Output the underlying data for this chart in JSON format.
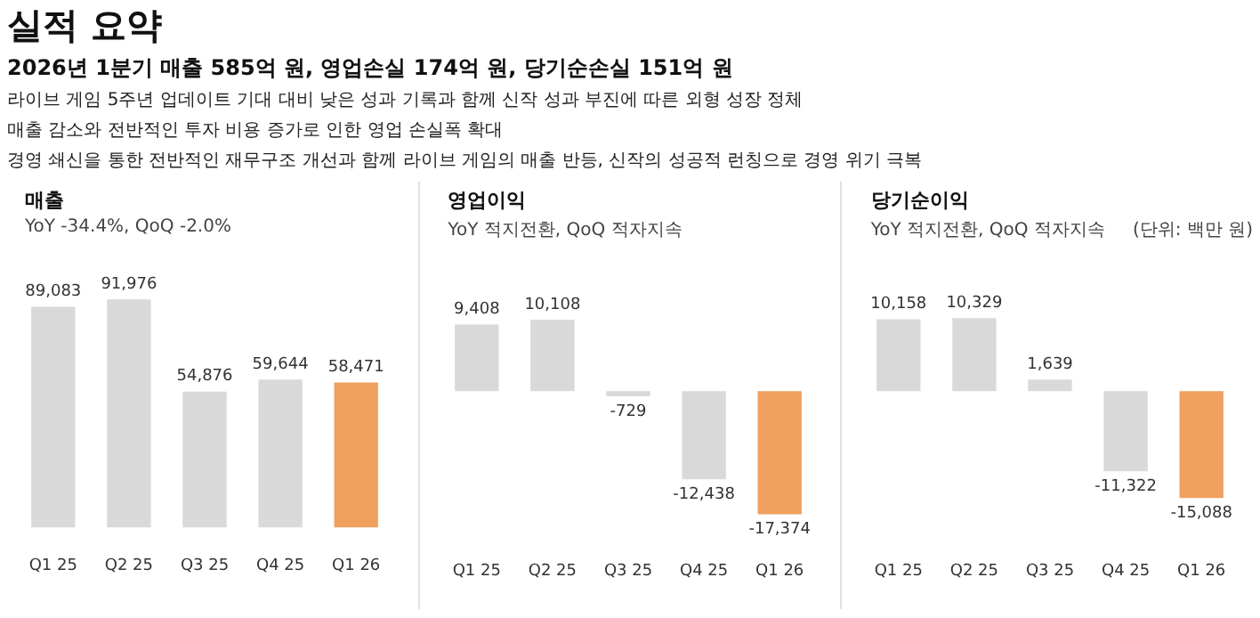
{
  "chart_data": [
    {
      "type": "other",
      "title": "실적 요약",
      "subtitle": "2026년 1분기 매출 585억 원, 영업손실 174억 원, 당기순손실 151억 원",
      "annotations": [
        "라이브 게임 5주년 업데이트 기대 대비 낮은 성과 기록과 함께 신작 성과 부진에 따른 외형 성장 정체",
        "매출 감소와 전반적인 투자 비용 증가로 인한 영업 손실폭 확대",
        "경영 쇄신을 통한 전반적인 재무구조 개선과 함께 라이브 게임의 매출 반등, 신작의 성공적 런칭으로 경영 위기 극복"
      ]
    },
    {
      "type": "bar",
      "title": "매출",
      "subtitle": "YoY -34.4%, QoQ -2.0%",
      "categories": [
        "Q1 25",
        "Q2 25",
        "Q3 25",
        "Q4 25",
        "Q1 26"
      ],
      "values": [
        89083,
        91976,
        54876,
        59644,
        58471
      ],
      "value_labels": [
        "89,083",
        "91,976",
        "54,876",
        "59,644",
        "58,471"
      ],
      "colors": [
        "#d9d9d9",
        "#d9d9d9",
        "#d9d9d9",
        "#d9d9d9",
        "#f0a05f"
      ],
      "tick_labels": "x",
      "grid": false,
      "legend": false
    },
    {
      "type": "bar",
      "title": "영업이익",
      "subtitle": "YoY 적지전환, QoQ 적자지속",
      "categories": [
        "Q1 25",
        "Q2 25",
        "Q3 25",
        "Q4 25",
        "Q1 26"
      ],
      "values": [
        9408,
        10108,
        -729,
        -12438,
        -17374
      ],
      "value_labels": [
        "9,408",
        "10,108",
        "-729",
        "-12,438",
        "-17,374"
      ],
      "colors": [
        "#d9d9d9",
        "#d9d9d9",
        "#d9d9d9",
        "#d9d9d9",
        "#f0a05f"
      ],
      "tick_labels": "x",
      "grid": false,
      "legend": false
    },
    {
      "type": "bar",
      "title": "당기순이익",
      "subtitle": "YoY 적지전환, QoQ 적자지속",
      "annotations": [
        "(단위: 백만 원)"
      ],
      "categories": [
        "Q1 25",
        "Q2 25",
        "Q3 25",
        "Q4 25",
        "Q1 26"
      ],
      "values": [
        10158,
        10329,
        1639,
        -11322,
        -15088
      ],
      "value_labels": [
        "10,158",
        "10,329",
        "1,639",
        "-11,322",
        "-15,088"
      ],
      "colors": [
        "#d9d9d9",
        "#d9d9d9",
        "#d9d9d9",
        "#d9d9d9",
        "#f0a05f"
      ],
      "tick_labels": "x",
      "grid": false,
      "legend": false
    }
  ]
}
